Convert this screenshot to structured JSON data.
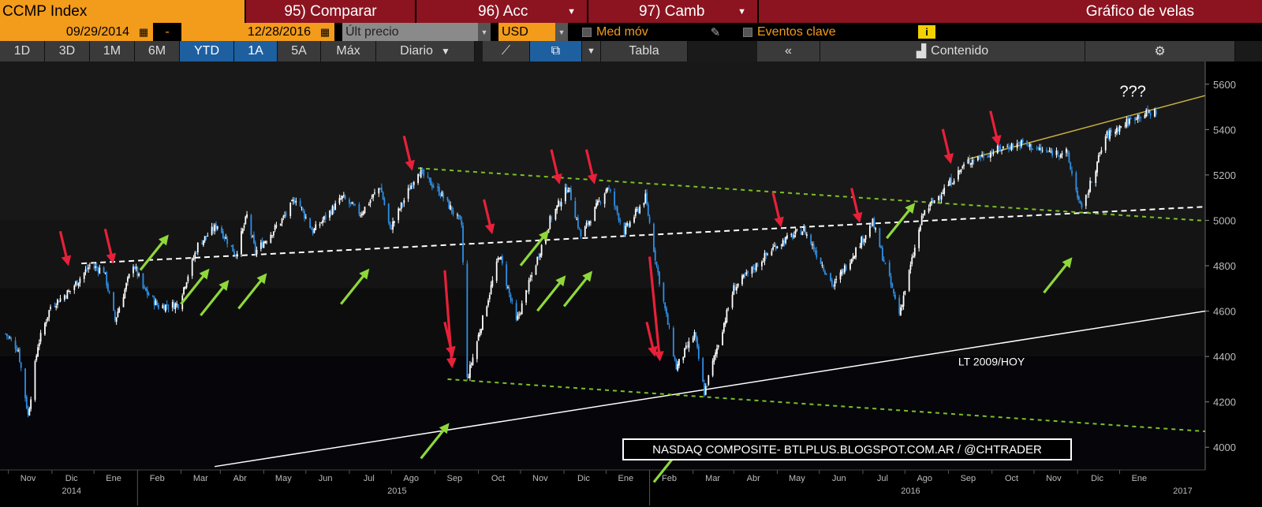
{
  "toolbar": {
    "ticker": "CCMP Index",
    "compare": "95) Comparar",
    "actions": "96) Acc",
    "change": "97) Camb",
    "title": "Gráfico de velas",
    "start_date": "09/29/2014",
    "date_sep": "-",
    "end_date": "12/28/2016",
    "price_field": "Últ precio",
    "currency": "USD",
    "moving_avg": "Med móv",
    "key_events": "Eventos clave",
    "info_icon": "i"
  },
  "periods": [
    "1D",
    "3D",
    "1M",
    "6M",
    "YTD",
    "1A",
    "5A",
    "Máx"
  ],
  "active_periods": [
    "YTD",
    "1A"
  ],
  "frequency": "Diario",
  "table_label": "Tabla",
  "contents_label": "Contenido",
  "colors": {
    "up": "#ffffff",
    "down": "#2e8fe6",
    "red_arrow": "#e8203a",
    "green_arrow": "#8fd83a",
    "dashed_green": "#7cc024",
    "trend_gold": "#c8b040"
  },
  "chart_data": {
    "type": "candlestick",
    "ylim": [
      3900,
      5700
    ],
    "yticks": [
      4000,
      4200,
      4400,
      4600,
      4800,
      5000,
      5200,
      5400,
      5600
    ],
    "x_months": [
      "Oct",
      "Nov",
      "Dic",
      "Ene",
      "Feb",
      "Mar",
      "Abr",
      "May",
      "Jun",
      "Jul",
      "Ago",
      "Sep",
      "Oct",
      "Nov",
      "Dic",
      "Ene",
      "Feb",
      "Mar",
      "Abr",
      "May",
      "Jun",
      "Jul",
      "Ago",
      "Sep",
      "Oct",
      "Nov",
      "Dic",
      "Ene"
    ],
    "x_years": [
      "2014",
      "2015",
      "2016",
      "2017"
    ],
    "price_path": [
      [
        "2014-09-29",
        4500
      ],
      [
        "2014-10-08",
        4430
      ],
      [
        "2014-10-15",
        4140
      ],
      [
        "2014-10-22",
        4450
      ],
      [
        "2014-10-31",
        4620
      ],
      [
        "2014-11-14",
        4690
      ],
      [
        "2014-11-28",
        4800
      ],
      [
        "2014-12-08",
        4780
      ],
      [
        "2014-12-16",
        4560
      ],
      [
        "2014-12-29",
        4810
      ],
      [
        "2015-01-05",
        4700
      ],
      [
        "2015-01-16",
        4620
      ],
      [
        "2015-01-30",
        4630
      ],
      [
        "2015-02-13",
        4890
      ],
      [
        "2015-02-27",
        4980
      ],
      [
        "2015-03-12",
        4850
      ],
      [
        "2015-03-20",
        5020
      ],
      [
        "2015-03-26",
        4860
      ],
      [
        "2015-04-15",
        5010
      ],
      [
        "2015-04-24",
        5100
      ],
      [
        "2015-05-06",
        4950
      ],
      [
        "2015-05-27",
        5100
      ],
      [
        "2015-06-09",
        5030
      ],
      [
        "2015-06-23",
        5150
      ],
      [
        "2015-06-30",
        4960
      ],
      [
        "2015-07-20",
        5220
      ],
      [
        "2015-08-05",
        5120
      ],
      [
        "2015-08-20",
        4980
      ],
      [
        "2015-08-24",
        4300
      ],
      [
        "2015-09-16",
        4850
      ],
      [
        "2015-09-28",
        4550
      ],
      [
        "2015-10-22",
        5000
      ],
      [
        "2015-11-04",
        5150
      ],
      [
        "2015-11-13",
        4930
      ],
      [
        "2015-12-02",
        5150
      ],
      [
        "2015-12-14",
        4950
      ],
      [
        "2015-12-29",
        5100
      ],
      [
        "2016-01-06",
        4800
      ],
      [
        "2016-01-20",
        4350
      ],
      [
        "2016-02-02",
        4500
      ],
      [
        "2016-02-09",
        4240
      ],
      [
        "2016-03-01",
        4700
      ],
      [
        "2016-03-31",
        4890
      ],
      [
        "2016-04-20",
        4960
      ],
      [
        "2016-05-11",
        4710
      ],
      [
        "2016-06-08",
        4990
      ],
      [
        "2016-06-27",
        4590
      ],
      [
        "2016-07-14",
        5030
      ],
      [
        "2016-08-15",
        5260
      ],
      [
        "2016-09-09",
        5320
      ],
      [
        "2016-09-22",
        5340
      ],
      [
        "2016-10-10",
        5300
      ],
      [
        "2016-10-24",
        5300
      ],
      [
        "2016-11-04",
        5040
      ],
      [
        "2016-11-21",
        5370
      ],
      [
        "2016-12-13",
        5460
      ],
      [
        "2016-12-27",
        5480
      ]
    ],
    "lines": [
      {
        "name": "LT 2009/HOY",
        "style": "solid",
        "color": "#ffffff",
        "from": [
          "2015-02-25",
          3915
        ],
        "to": [
          "2017-01-31",
          4600
        ]
      },
      {
        "style": "dashed",
        "color": "#ffffff",
        "from": [
          "2014-11-22",
          4810
        ],
        "to": [
          "2017-01-31",
          5060
        ]
      },
      {
        "style": "dashed",
        "color": "#7cc024",
        "from": [
          "2015-07-20",
          5230
        ],
        "to": [
          "2017-01-31",
          4998
        ]
      },
      {
        "style": "dashed",
        "color": "#7cc024",
        "from": [
          "2015-08-10",
          4300
        ],
        "to": [
          "2017-01-31",
          4070
        ]
      },
      {
        "style": "solid",
        "color": "#c8b040",
        "from": [
          "2016-08-15",
          5270
        ],
        "to": [
          "2017-01-31",
          5550
        ]
      }
    ],
    "red_arrows": [
      [
        "2014-11-12",
        4820
      ],
      [
        "2014-12-14",
        4830
      ],
      [
        "2015-07-15",
        5240
      ],
      [
        "2015-08-13",
        4420
      ],
      [
        "2015-09-10",
        4960
      ],
      [
        "2015-10-28",
        5180
      ],
      [
        "2015-11-22",
        5180
      ],
      [
        "2016-01-04",
        4420
      ],
      [
        "2016-04-03",
        4990
      ],
      [
        "2016-05-29",
        5010
      ],
      [
        "2016-08-02",
        5270
      ],
      [
        "2016-09-05",
        5350
      ]
    ],
    "green_arrows": [
      [
        "2015-01-21",
        4920
      ],
      [
        "2015-02-19",
        4770
      ],
      [
        "2015-03-05",
        4720
      ],
      [
        "2015-04-01",
        4750
      ],
      [
        "2015-06-13",
        4770
      ],
      [
        "2015-08-09",
        4090
      ],
      [
        "2015-10-19",
        4940
      ],
      [
        "2015-10-31",
        4740
      ],
      [
        "2015-11-19",
        4760
      ],
      [
        "2016-01-22",
        3985
      ],
      [
        "2016-07-06",
        5060
      ],
      [
        "2016-10-26",
        4820
      ]
    ],
    "labels": {
      "trendline": "LT 2009/HOY",
      "question": "???",
      "watermark": "NASDAQ COMPOSITE- BTLPLUS.BLOGSPOT.COM.AR / @CHTRADER"
    }
  }
}
